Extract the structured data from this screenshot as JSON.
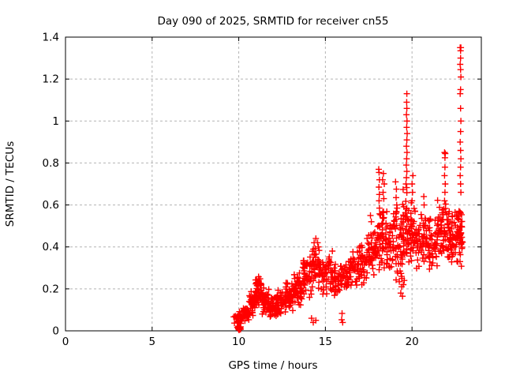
{
  "page": {
    "background": "#ffffff",
    "text_color": "#000000"
  },
  "chart_data": {
    "type": "scatter",
    "title": "Day 090 of 2025, SRMTID for receiver cn55",
    "xlabel": "GPS time / hours",
    "ylabel": "SRMTID / TECUs",
    "xlim": [
      0,
      24
    ],
    "ylim": [
      0,
      1.4
    ],
    "xticks": [
      0,
      5,
      10,
      15,
      20
    ],
    "yticks": [
      0,
      0.2,
      0.4,
      0.6,
      0.8,
      1,
      1.2,
      1.4
    ],
    "grid": {
      "show": true,
      "style": "dashed",
      "color": "#b4b4b4"
    },
    "legend": "none",
    "frame_color": "#000000",
    "marker": {
      "shape": "plus",
      "color": "#ff0000",
      "size": 8
    },
    "series_name": "SRMTID",
    "x_data_range": [
      9.7,
      22.92
    ],
    "y_data_range": [
      0.004,
      1.35
    ],
    "seed": 20250090,
    "cloud_segments": [
      [
        9.7,
        10.1,
        0.02,
        0.1,
        22
      ],
      [
        9.92,
        10.12,
        0.004,
        0.028,
        12
      ],
      [
        10.1,
        10.6,
        0.03,
        0.13,
        30
      ],
      [
        10.6,
        10.95,
        0.06,
        0.19,
        34
      ],
      [
        10.95,
        11.35,
        0.11,
        0.27,
        60
      ],
      [
        11.35,
        11.75,
        0.07,
        0.21,
        46
      ],
      [
        11.75,
        12.2,
        0.05,
        0.17,
        46
      ],
      [
        12.2,
        12.7,
        0.07,
        0.22,
        46
      ],
      [
        12.7,
        13.2,
        0.09,
        0.25,
        46
      ],
      [
        13.2,
        13.7,
        0.11,
        0.3,
        46
      ],
      [
        13.7,
        14.2,
        0.13,
        0.36,
        46
      ],
      [
        14.2,
        14.75,
        0.17,
        0.43,
        46
      ],
      [
        14.75,
        15.3,
        0.16,
        0.36,
        42
      ],
      [
        15.3,
        15.85,
        0.15,
        0.34,
        40
      ],
      [
        15.85,
        16.3,
        0.17,
        0.33,
        36
      ],
      [
        16.3,
        16.85,
        0.19,
        0.38,
        40
      ],
      [
        16.85,
        17.4,
        0.21,
        0.43,
        40
      ],
      [
        17.4,
        17.95,
        0.23,
        0.52,
        42
      ],
      [
        17.95,
        18.45,
        0.27,
        0.62,
        46
      ],
      [
        18.45,
        18.95,
        0.26,
        0.6,
        42
      ],
      [
        18.95,
        19.45,
        0.2,
        0.62,
        46
      ],
      [
        19.45,
        19.78,
        0.28,
        0.75,
        42
      ],
      [
        19.78,
        20.25,
        0.3,
        0.62,
        46
      ],
      [
        20.25,
        20.85,
        0.25,
        0.58,
        50
      ],
      [
        20.85,
        21.45,
        0.28,
        0.55,
        46
      ],
      [
        21.45,
        22.0,
        0.33,
        0.65,
        50
      ],
      [
        22.0,
        22.55,
        0.28,
        0.6,
        55
      ],
      [
        22.55,
        22.92,
        0.3,
        0.62,
        55
      ]
    ],
    "spike_points": [
      [
        9.97,
        0.01
      ],
      [
        10.0,
        0.01
      ],
      [
        10.03,
        0.01
      ],
      [
        9.97,
        0.018
      ],
      [
        10.0,
        0.018
      ],
      [
        10.03,
        0.018
      ],
      [
        10.0,
        0.005
      ],
      [
        10.03,
        0.005
      ],
      [
        14.2,
        0.06
      ],
      [
        14.3,
        0.04
      ],
      [
        14.45,
        0.05
      ],
      [
        15.94,
        0.053
      ],
      [
        16.0,
        0.04
      ],
      [
        15.96,
        0.083
      ],
      [
        14.35,
        0.42
      ],
      [
        14.45,
        0.44
      ],
      [
        14.55,
        0.42
      ],
      [
        14.6,
        0.4
      ],
      [
        15.4,
        0.38
      ],
      [
        17.6,
        0.55
      ],
      [
        17.65,
        0.52
      ],
      [
        18.08,
        0.77
      ],
      [
        18.1,
        0.755
      ],
      [
        18.12,
        0.72
      ],
      [
        18.09,
        0.685
      ],
      [
        18.11,
        0.65
      ],
      [
        18.1,
        0.62
      ],
      [
        18.12,
        0.585
      ],
      [
        18.3,
        0.72
      ],
      [
        18.35,
        0.75
      ],
      [
        18.4,
        0.7
      ],
      [
        18.33,
        0.66
      ],
      [
        18.37,
        0.63
      ],
      [
        19.05,
        0.71
      ],
      [
        19.1,
        0.675
      ],
      [
        19.08,
        0.635
      ],
      [
        19.12,
        0.6
      ],
      [
        19.1,
        0.565
      ],
      [
        19.35,
        0.18
      ],
      [
        19.4,
        0.21
      ],
      [
        19.45,
        0.165
      ],
      [
        19.5,
        0.22
      ],
      [
        19.42,
        0.25
      ],
      [
        19.55,
        0.24
      ],
      [
        19.65,
        0.7
      ],
      [
        19.68,
        0.73
      ],
      [
        19.7,
        0.76
      ],
      [
        19.67,
        0.79
      ],
      [
        19.69,
        0.82
      ],
      [
        19.71,
        0.85
      ],
      [
        19.68,
        0.88
      ],
      [
        19.7,
        0.91
      ],
      [
        19.72,
        0.94
      ],
      [
        19.69,
        0.97
      ],
      [
        19.71,
        1.0
      ],
      [
        19.68,
        1.03
      ],
      [
        19.7,
        1.06
      ],
      [
        19.69,
        1.09
      ],
      [
        19.7,
        1.13
      ],
      [
        20.0,
        0.62
      ],
      [
        20.03,
        0.66
      ],
      [
        20.0,
        0.7
      ],
      [
        20.05,
        0.74
      ],
      [
        20.68,
        0.64
      ],
      [
        20.7,
        0.6
      ],
      [
        21.88,
        0.85
      ],
      [
        21.9,
        0.825
      ],
      [
        21.92,
        0.845
      ],
      [
        21.9,
        0.78
      ],
      [
        21.88,
        0.74
      ],
      [
        21.92,
        0.7
      ],
      [
        21.9,
        0.66
      ],
      [
        21.88,
        0.62
      ],
      [
        22.78,
        1.35
      ],
      [
        22.8,
        1.335
      ],
      [
        22.82,
        1.35
      ],
      [
        22.8,
        1.3
      ],
      [
        22.78,
        1.27
      ],
      [
        22.8,
        1.245
      ],
      [
        22.82,
        1.21
      ],
      [
        22.8,
        1.15
      ],
      [
        22.78,
        1.13
      ],
      [
        22.8,
        1.06
      ],
      [
        22.82,
        1.0
      ],
      [
        22.8,
        0.95
      ],
      [
        22.78,
        0.9
      ],
      [
        22.8,
        0.86
      ],
      [
        22.82,
        0.82
      ],
      [
        22.8,
        0.78
      ],
      [
        22.78,
        0.74
      ],
      [
        22.8,
        0.7
      ],
      [
        22.82,
        0.66
      ]
    ]
  }
}
